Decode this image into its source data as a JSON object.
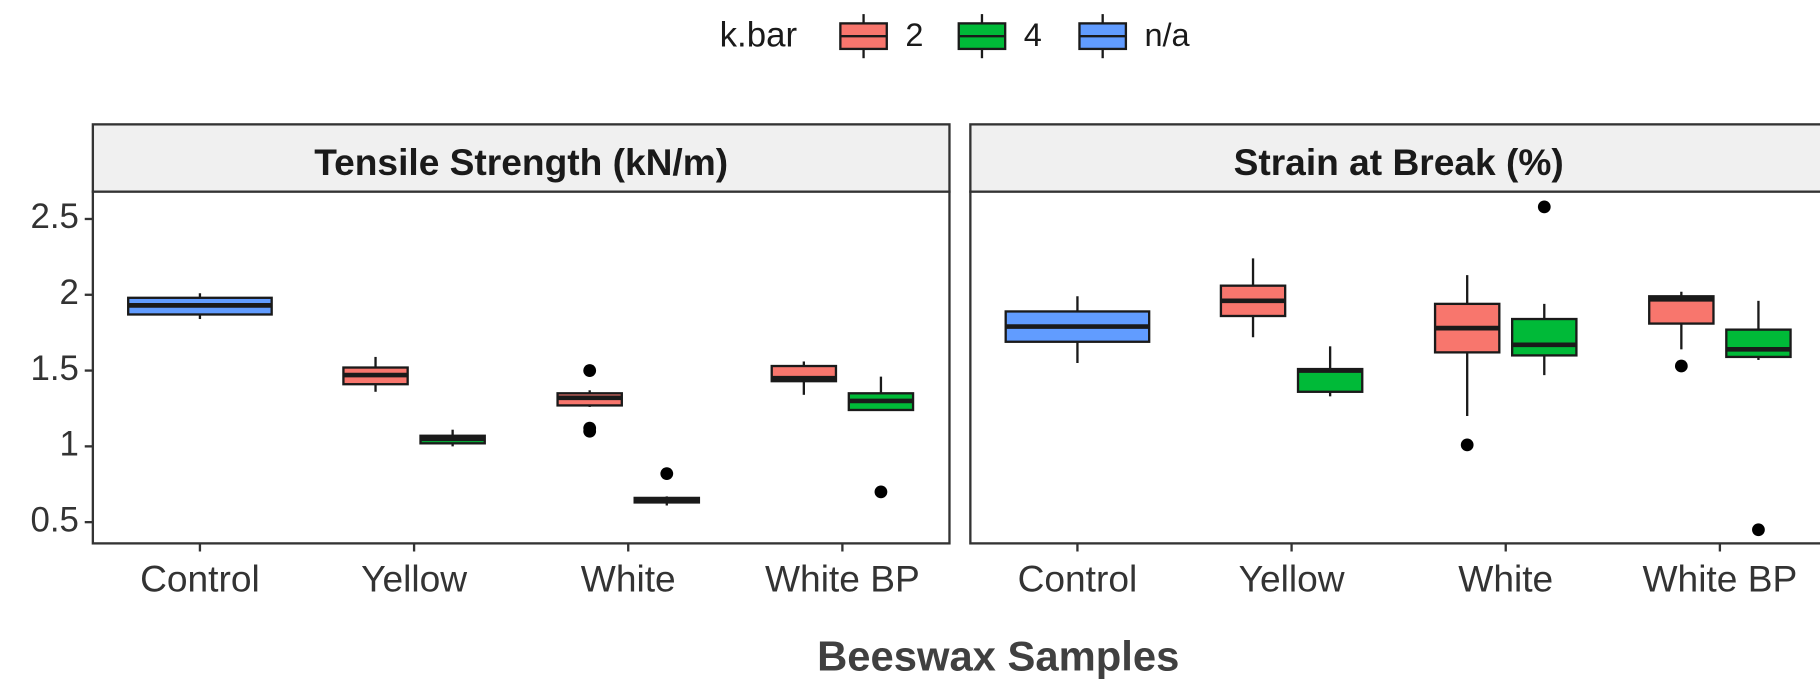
{
  "chart_data": {
    "type": "box",
    "legend_title": "k.bar",
    "xlabel": "Beeswax Samples",
    "categories": [
      "Control",
      "Yellow",
      "White",
      "White BP"
    ],
    "ylim": [
      0.36,
      2.68
    ],
    "yticks": [
      0.5,
      1.0,
      1.5,
      2.0,
      2.5
    ],
    "legend": [
      {
        "name": "2",
        "color": "#f8766d"
      },
      {
        "name": "4",
        "color": "#00ba38"
      },
      {
        "name": "n/a",
        "color": "#619cff"
      }
    ],
    "panels": [
      {
        "title": "Tensile Strength (kN/m)",
        "series": [
          {
            "name": "2",
            "color": "#f8766d",
            "min": [
              null,
              1.36,
              1.26,
              1.34
            ],
            "q1": [
              null,
              1.41,
              1.27,
              1.43
            ],
            "median": [
              null,
              1.47,
              1.32,
              1.45
            ],
            "q3": [
              null,
              1.52,
              1.35,
              1.53
            ],
            "max": [
              null,
              1.59,
              1.37,
              1.56
            ],
            "outliers": [
              null,
              [],
              [
                1.5,
                1.12,
                1.1
              ],
              []
            ]
          },
          {
            "name": "4",
            "color": "#00ba38",
            "min": [
              null,
              1.0,
              0.61,
              1.24
            ],
            "q1": [
              null,
              1.02,
              0.63,
              1.24
            ],
            "median": [
              null,
              1.05,
              0.64,
              1.3
            ],
            "q3": [
              null,
              1.07,
              0.66,
              1.35
            ],
            "max": [
              null,
              1.11,
              0.67,
              1.46
            ],
            "outliers": [
              null,
              [],
              [
                0.82
              ],
              [
                0.7
              ]
            ]
          },
          {
            "name": "n/a",
            "color": "#619cff",
            "min": [
              1.84,
              null,
              null,
              null
            ],
            "q1": [
              1.87,
              null,
              null,
              null
            ],
            "median": [
              1.93,
              null,
              null,
              null
            ],
            "q3": [
              1.98,
              null,
              null,
              null
            ],
            "max": [
              2.01,
              null,
              null,
              null
            ],
            "outliers": [
              [],
              null,
              null,
              null
            ]
          }
        ]
      },
      {
        "title": "Strain at Break (%)",
        "series": [
          {
            "name": "2",
            "color": "#f8766d",
            "min": [
              null,
              1.72,
              1.2,
              1.64
            ],
            "q1": [
              null,
              1.86,
              1.62,
              1.81
            ],
            "median": [
              null,
              1.96,
              1.78,
              1.97
            ],
            "q3": [
              null,
              2.06,
              1.94,
              1.99
            ],
            "max": [
              null,
              2.24,
              2.13,
              2.02
            ],
            "outliers": [
              null,
              [],
              [
                1.01
              ],
              [
                1.53
              ]
            ]
          },
          {
            "name": "4",
            "color": "#00ba38",
            "min": [
              null,
              1.33,
              1.47,
              1.57
            ],
            "q1": [
              null,
              1.36,
              1.6,
              1.59
            ],
            "median": [
              null,
              1.5,
              1.67,
              1.64
            ],
            "q3": [
              null,
              1.51,
              1.84,
              1.77
            ],
            "max": [
              null,
              1.66,
              1.94,
              1.96
            ],
            "outliers": [
              null,
              [],
              [
                2.58
              ],
              [
                0.45
              ]
            ]
          },
          {
            "name": "n/a",
            "color": "#619cff",
            "min": [
              1.55,
              null,
              null,
              null
            ],
            "q1": [
              1.69,
              null,
              null,
              null
            ],
            "median": [
              1.79,
              null,
              null,
              null
            ],
            "q3": [
              1.89,
              null,
              null,
              null
            ],
            "max": [
              1.99,
              null,
              null,
              null
            ],
            "outliers": [
              [],
              null,
              null,
              null
            ]
          }
        ]
      }
    ]
  }
}
